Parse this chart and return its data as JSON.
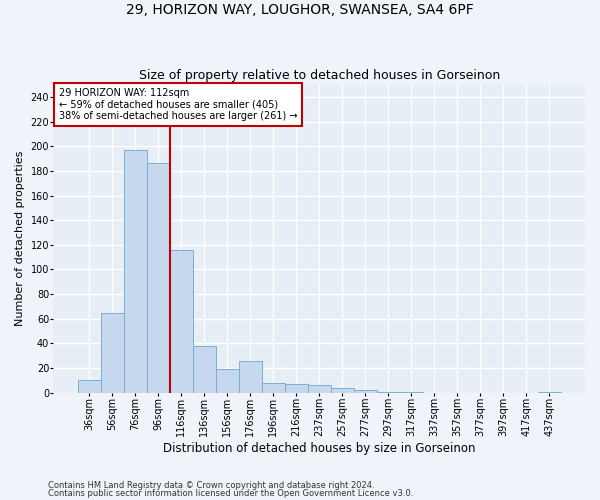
{
  "title1": "29, HORIZON WAY, LOUGHOR, SWANSEA, SA4 6PF",
  "title2": "Size of property relative to detached houses in Gorseinon",
  "xlabel": "Distribution of detached houses by size in Gorseinon",
  "ylabel": "Number of detached properties",
  "footer1": "Contains HM Land Registry data © Crown copyright and database right 2024.",
  "footer2": "Contains public sector information licensed under the Open Government Licence v3.0.",
  "categories": [
    "36sqm",
    "56sqm",
    "76sqm",
    "96sqm",
    "116sqm",
    "136sqm",
    "156sqm",
    "176sqm",
    "196sqm",
    "216sqm",
    "237sqm",
    "257sqm",
    "277sqm",
    "297sqm",
    "317sqm",
    "337sqm",
    "357sqm",
    "377sqm",
    "397sqm",
    "417sqm",
    "437sqm"
  ],
  "values": [
    10,
    65,
    197,
    186,
    116,
    38,
    19,
    26,
    8,
    7,
    6,
    4,
    2,
    1,
    1,
    0,
    0,
    0,
    0,
    0,
    1
  ],
  "bar_color": "#c5d8ed",
  "bar_edge_color": "#7aafd4",
  "vline_x": 3.5,
  "vline_color": "#c00000",
  "annotation_text": "29 HORIZON WAY: 112sqm\n← 59% of detached houses are smaller (405)\n38% of semi-detached houses are larger (261) →",
  "annotation_box_color": "#ffffff",
  "annotation_box_edge": "#c00000",
  "ylim": [
    0,
    250
  ],
  "yticks": [
    0,
    20,
    40,
    60,
    80,
    100,
    120,
    140,
    160,
    180,
    200,
    220,
    240
  ],
  "bg_color": "#e8eef6",
  "fig_color": "#f0f4fa",
  "grid_color": "#ffffff",
  "title1_fontsize": 10,
  "title2_fontsize": 9,
  "xlabel_fontsize": 8.5,
  "ylabel_fontsize": 8,
  "tick_fontsize": 7,
  "annotation_fontsize": 7,
  "footer_fontsize": 6
}
